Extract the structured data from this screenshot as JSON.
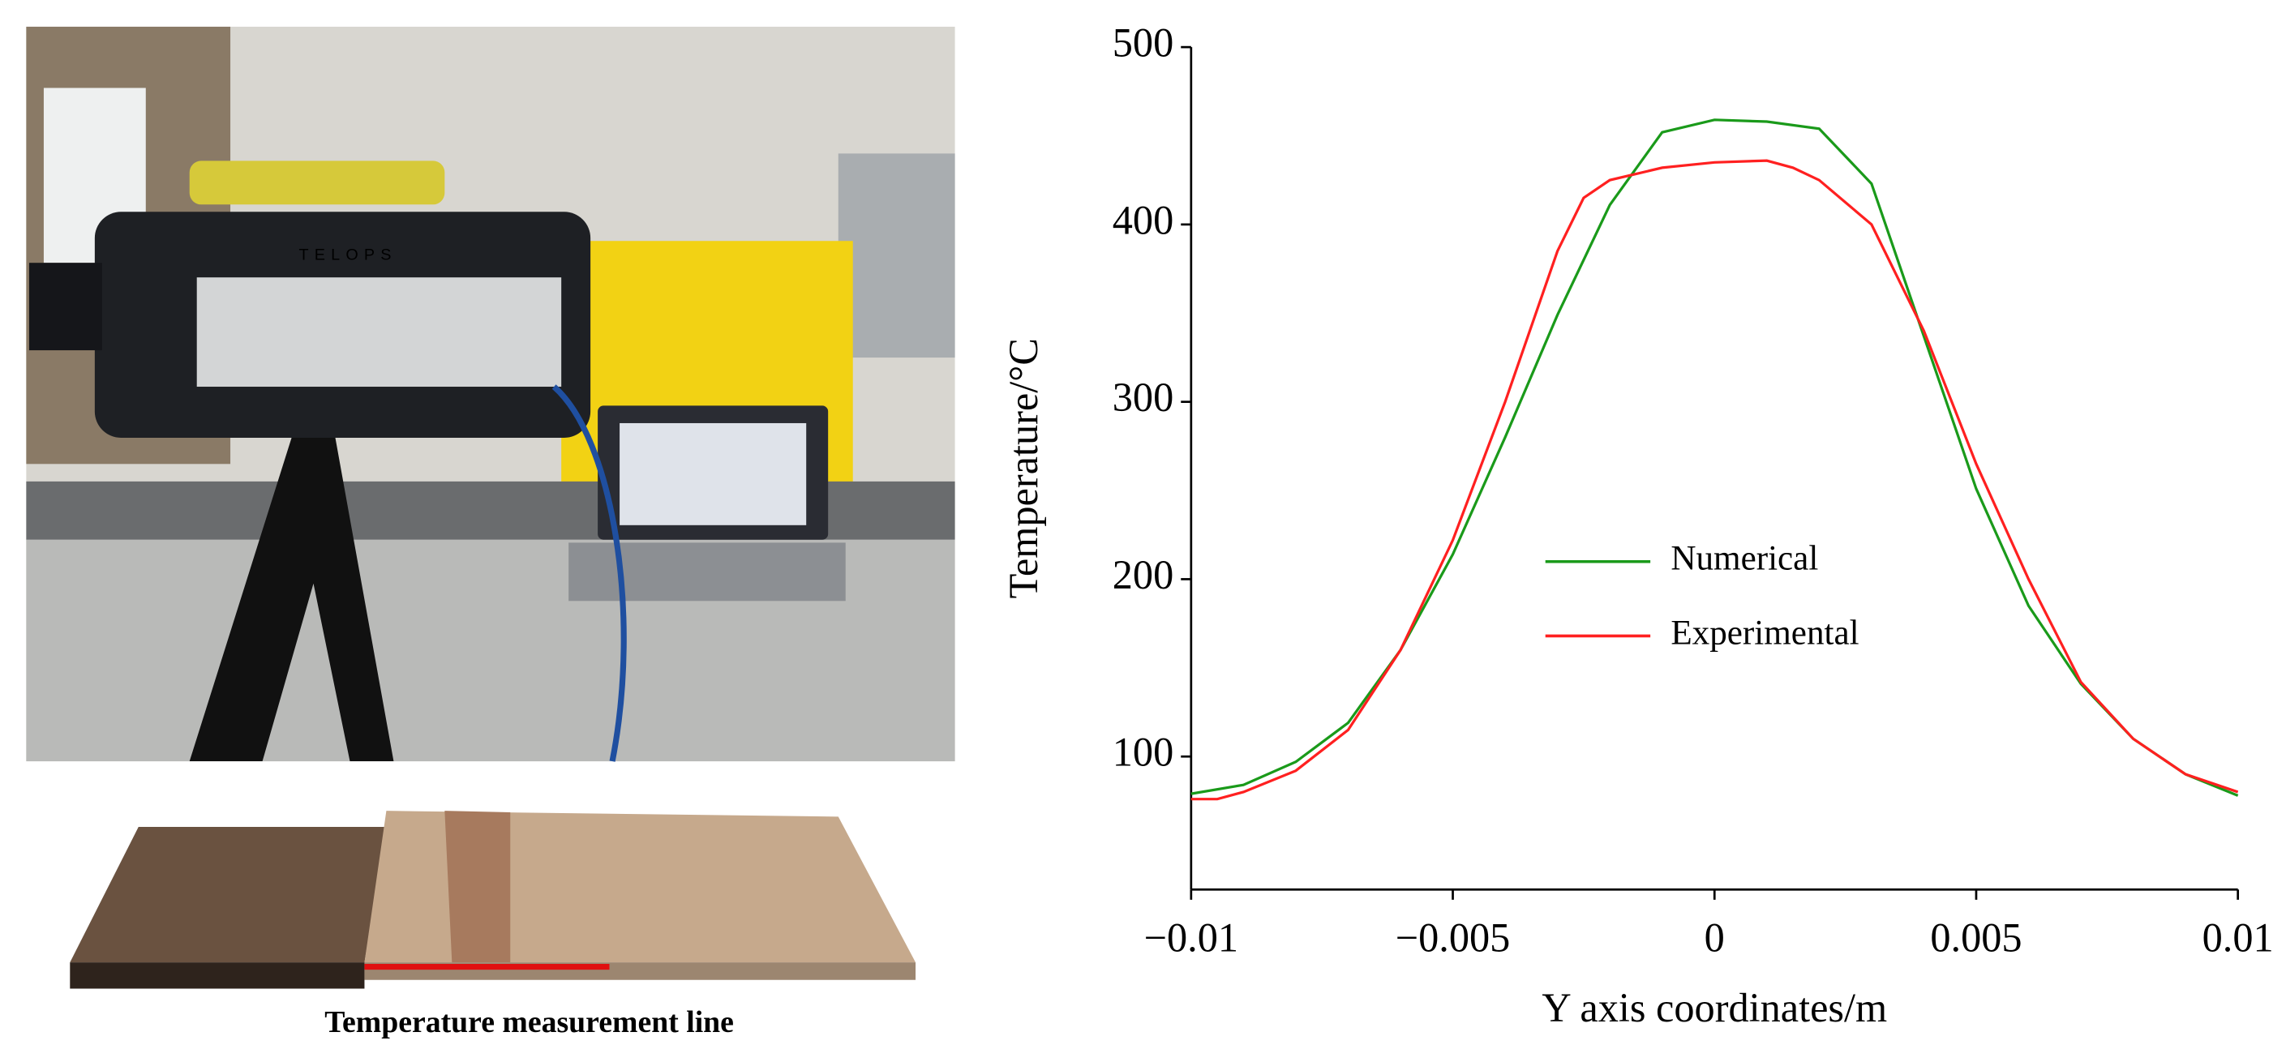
{
  "photo": {
    "caption": "Temperature measurement line",
    "camera_brand": "TELOPS"
  },
  "chart_data": {
    "type": "line",
    "xlabel": "Y axis coordinates/m",
    "ylabel": "Temperature/°C",
    "xlim": [
      -0.01,
      0.01
    ],
    "ylim": [
      25,
      500
    ],
    "xticks": [
      {
        "value": -0.01,
        "label": "−0.01"
      },
      {
        "value": -0.005,
        "label": "−0.005"
      },
      0,
      0.005,
      0.01
    ],
    "yticks": [
      100,
      200,
      300,
      400,
      500
    ],
    "legend": "center",
    "series": [
      {
        "name": "Numerical",
        "color": "#1a9a1a",
        "x": [
          -0.01,
          -0.009,
          -0.008,
          -0.007,
          -0.006,
          -0.005,
          -0.004,
          -0.003,
          -0.002,
          -0.001,
          0,
          0.001,
          0.002,
          0.003,
          0.004,
          0.005,
          0.006,
          0.007,
          0.008,
          0.009,
          0.01
        ],
        "values": [
          79,
          84,
          97,
          119,
          160,
          214,
          280,
          349,
          411,
          452,
          459,
          458,
          454,
          423,
          337,
          251,
          185,
          141,
          110,
          90,
          78
        ]
      },
      {
        "name": "Experimental",
        "color": "#ff2020",
        "x": [
          -0.01,
          -0.0095,
          -0.009,
          -0.008,
          -0.007,
          -0.006,
          -0.005,
          -0.004,
          -0.003,
          -0.0025,
          -0.002,
          -0.001,
          0,
          0.001,
          0.0015,
          0.002,
          0.003,
          0.004,
          0.005,
          0.006,
          0.007,
          0.008,
          0.009,
          0.01
        ],
        "values": [
          76,
          76,
          80,
          92,
          115,
          160,
          222,
          300,
          385,
          415,
          425,
          432,
          435,
          436,
          432,
          425,
          400,
          340,
          265,
          200,
          142,
          110,
          90,
          80
        ]
      }
    ]
  }
}
